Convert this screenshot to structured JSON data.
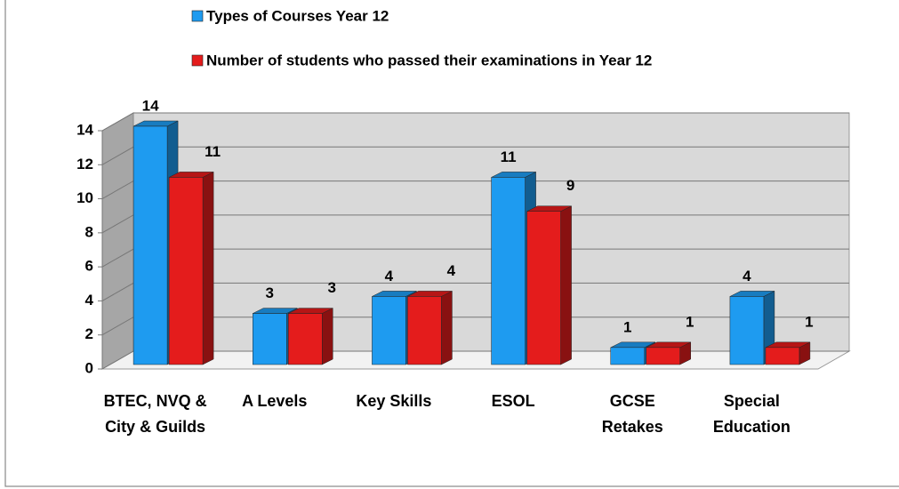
{
  "chart_data": {
    "type": "bar3d",
    "categories": [
      "BTEC, NVQ & City & Guilds",
      "A Levels",
      "Key Skills",
      "ESOL",
      "GCSE Retakes",
      "Special Education"
    ],
    "series": [
      {
        "name": "Types of Courses Year 12",
        "color": "#1e9bf0",
        "values": [
          14,
          3,
          4,
          11,
          1,
          4
        ]
      },
      {
        "name": "Number of students who passed their examinations in Year 12",
        "color": "#e41c1c",
        "values": [
          11,
          3,
          4,
          9,
          1,
          1
        ]
      }
    ],
    "ylim": [
      0,
      14
    ],
    "yticks": [
      0,
      2,
      4,
      6,
      8,
      10,
      12,
      14
    ],
    "grid": true,
    "legend": "top"
  }
}
